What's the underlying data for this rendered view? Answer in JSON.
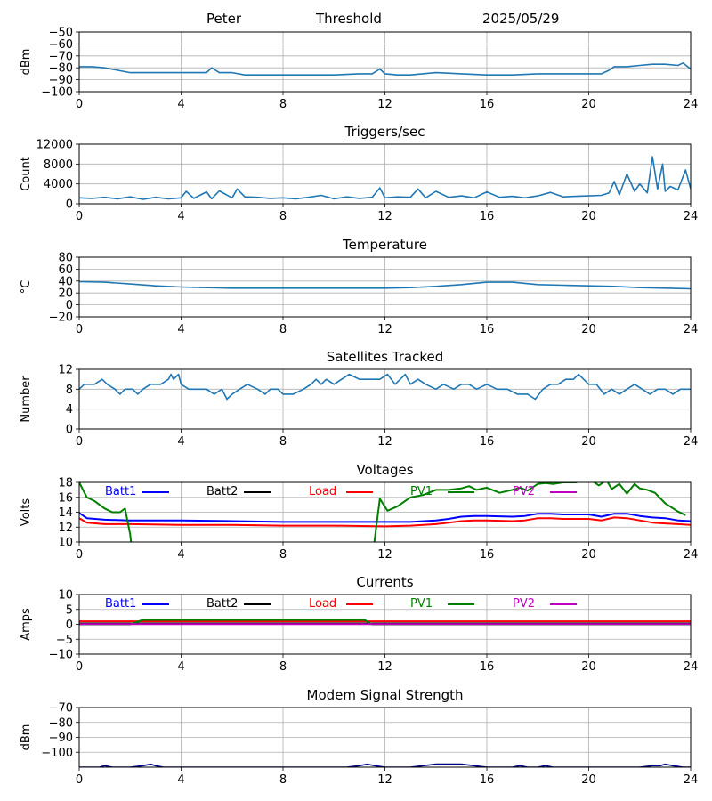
{
  "header": {
    "name": "Peter",
    "mode": "Threshold",
    "date": "2025/05/29"
  },
  "colors": {
    "series": "#1f77b4",
    "grid": "#b0b0b0",
    "batt1": "#0000ff",
    "batt2": "#000000",
    "load": "#ff0000",
    "pv1": "#008000",
    "pv2": "#bf00bf",
    "modem": "#00008b"
  },
  "chart_data": [
    {
      "type": "line",
      "title": "",
      "ylabel": "dBm",
      "xlim": [
        0,
        24
      ],
      "ylim": [
        -100,
        -50
      ],
      "grid": true,
      "xticks": [
        0,
        4,
        8,
        12,
        16,
        20,
        24
      ],
      "yticks": [
        -100,
        -90,
        -80,
        -70,
        -60,
        -50
      ],
      "ytick_labels": [
        "−100",
        "−90",
        "−80",
        "−70",
        "−60",
        "−50"
      ],
      "series": [
        {
          "name": "",
          "x": [
            0,
            0.5,
            1,
            1.5,
            2,
            3,
            4,
            4.5,
            5,
            5.2,
            5.5,
            6,
            6.5,
            7,
            8,
            9,
            10,
            11,
            11.5,
            11.8,
            12,
            12.5,
            13,
            14,
            15,
            16,
            17,
            18,
            19,
            20,
            20.5,
            20.8,
            21,
            21.5,
            22,
            22.5,
            23,
            23.5,
            23.7,
            24
          ],
          "y": [
            -79,
            -79,
            -80,
            -82,
            -84,
            -84,
            -84,
            -84,
            -84,
            -80,
            -84,
            -84,
            -86,
            -86,
            -86,
            -86,
            -86,
            -85,
            -85,
            -81,
            -85,
            -86,
            -86,
            -84,
            -85,
            -86,
            -86,
            -85,
            -85,
            -85,
            -85,
            -82,
            -79,
            -79,
            -78,
            -77,
            -77,
            -78,
            -76,
            -81
          ]
        }
      ]
    },
    {
      "type": "line",
      "title": "Triggers/sec",
      "ylabel": "Count",
      "xlim": [
        0,
        24
      ],
      "ylim": [
        0,
        12000
      ],
      "grid": true,
      "xticks": [
        0,
        4,
        8,
        12,
        16,
        20,
        24
      ],
      "yticks": [
        0,
        4000,
        8000,
        12000
      ],
      "ytick_labels": [
        "0",
        "4000",
        "8000",
        "12000"
      ],
      "series": [
        {
          "name": "",
          "x": [
            0,
            0.5,
            1,
            1.5,
            2,
            2.5,
            3,
            3.5,
            4,
            4.2,
            4.5,
            5,
            5.2,
            5.5,
            6,
            6.2,
            6.5,
            7,
            7.5,
            8,
            8.5,
            9,
            9.5,
            10,
            10.5,
            11,
            11.5,
            11.8,
            12,
            12.5,
            13,
            13.3,
            13.6,
            14,
            14.5,
            15,
            15.5,
            16,
            16.5,
            17,
            17.5,
            18,
            18.5,
            19,
            19.5,
            20,
            20.5,
            20.8,
            21,
            21.2,
            21.5,
            21.8,
            22,
            22.3,
            22.5,
            22.7,
            22.9,
            23,
            23.2,
            23.5,
            23.8,
            24
          ],
          "y": [
            1200,
            1100,
            1300,
            1000,
            1400,
            900,
            1300,
            1000,
            1200,
            2500,
            1100,
            2400,
            1000,
            2600,
            1200,
            3000,
            1400,
            1300,
            1100,
            1200,
            1000,
            1300,
            1700,
            1000,
            1400,
            1100,
            1300,
            3200,
            1200,
            1400,
            1300,
            3000,
            1200,
            2500,
            1300,
            1600,
            1200,
            2400,
            1300,
            1500,
            1200,
            1600,
            2300,
            1400,
            1500,
            1600,
            1700,
            2200,
            4500,
            1800,
            6000,
            2500,
            4000,
            2200,
            9500,
            3000,
            8000,
            2500,
            3500,
            2800,
            6800,
            3000
          ]
        }
      ]
    },
    {
      "type": "line",
      "title": "Temperature",
      "ylabel": "°C",
      "xlim": [
        0,
        24
      ],
      "ylim": [
        -20,
        80
      ],
      "grid": true,
      "xticks": [
        0,
        4,
        8,
        12,
        16,
        20,
        24
      ],
      "yticks": [
        -20,
        0,
        20,
        40,
        60,
        80
      ],
      "ytick_labels": [
        "−20",
        "0",
        "20",
        "40",
        "60",
        "80"
      ],
      "series": [
        {
          "name": "",
          "x": [
            0,
            1,
            2,
            3,
            4,
            5,
            6,
            8,
            10,
            11,
            12,
            13,
            14,
            15,
            16,
            17,
            18,
            19,
            20,
            21,
            22,
            23,
            24
          ],
          "y": [
            39,
            38,
            35,
            32,
            30,
            29,
            28,
            28,
            28,
            28,
            28,
            29,
            31,
            34,
            38,
            38,
            34,
            33,
            32,
            31,
            29,
            28,
            27
          ]
        }
      ]
    },
    {
      "type": "line",
      "title": "Satellites Tracked",
      "ylabel": "Number",
      "xlim": [
        0,
        24
      ],
      "ylim": [
        0,
        12
      ],
      "grid": true,
      "xticks": [
        0,
        4,
        8,
        12,
        16,
        20,
        24
      ],
      "yticks": [
        0,
        4,
        8,
        12
      ],
      "ytick_labels": [
        "0",
        "4",
        "8",
        "12"
      ],
      "series": [
        {
          "name": "",
          "x": [
            0,
            0.2,
            0.6,
            0.9,
            1.1,
            1.4,
            1.6,
            1.8,
            2.1,
            2.3,
            2.5,
            2.8,
            3.0,
            3.2,
            3.5,
            3.6,
            3.7,
            3.9,
            4.0,
            4.3,
            4.6,
            5.0,
            5.3,
            5.6,
            5.8,
            6.0,
            6.3,
            6.6,
            7.0,
            7.3,
            7.5,
            7.8,
            8.0,
            8.4,
            8.8,
            9.1,
            9.3,
            9.5,
            9.7,
            10.0,
            10.3,
            10.6,
            11.0,
            11.4,
            11.8,
            12.1,
            12.4,
            12.6,
            12.8,
            13.0,
            13.3,
            13.6,
            14.0,
            14.3,
            14.7,
            15.0,
            15.3,
            15.6,
            16.0,
            16.4,
            16.8,
            17.2,
            17.6,
            17.9,
            18.2,
            18.5,
            18.8,
            19.1,
            19.4,
            19.6,
            20.0,
            20.3,
            20.6,
            20.9,
            21.2,
            21.5,
            21.8,
            22.1,
            22.4,
            22.7,
            23.0,
            23.3,
            23.6,
            24.0
          ],
          "y": [
            8,
            9,
            9,
            10,
            9,
            8,
            7,
            8,
            8,
            7,
            8,
            9,
            9,
            9,
            10,
            11,
            10,
            11,
            9,
            8,
            8,
            8,
            7,
            8,
            6,
            7,
            8,
            9,
            8,
            7,
            8,
            8,
            7,
            7,
            8,
            9,
            10,
            9,
            10,
            9,
            10,
            11,
            10,
            10,
            10,
            11,
            9,
            10,
            11,
            9,
            10,
            9,
            8,
            9,
            8,
            9,
            9,
            8,
            9,
            8,
            8,
            7,
            7,
            6,
            8,
            9,
            9,
            10,
            10,
            11,
            9,
            9,
            7,
            8,
            7,
            8,
            9,
            8,
            7,
            8,
            8,
            7,
            8,
            8
          ]
        }
      ]
    },
    {
      "type": "line",
      "title": "Voltages",
      "ylabel": "Volts",
      "xlim": [
        0,
        24
      ],
      "ylim": [
        10,
        18
      ],
      "grid": true,
      "xticks": [
        0,
        4,
        8,
        12,
        16,
        20,
        24
      ],
      "yticks": [
        10,
        12,
        14,
        16,
        18
      ],
      "ytick_labels": [
        "10",
        "12",
        "14",
        "16",
        "18"
      ],
      "series": [
        {
          "name": "Batt1",
          "color_key": "batt1",
          "x": [
            0,
            0.3,
            1,
            2,
            4,
            6,
            8,
            10,
            12,
            13,
            14,
            14.5,
            15,
            15.5,
            16,
            17,
            17.5,
            18,
            18.5,
            19,
            20,
            20.5,
            21,
            21.5,
            22,
            22.5,
            23,
            23.5,
            24
          ],
          "y": [
            13.9,
            13.2,
            13.0,
            12.9,
            12.9,
            12.8,
            12.7,
            12.7,
            12.7,
            12.7,
            12.9,
            13.1,
            13.4,
            13.5,
            13.5,
            13.4,
            13.5,
            13.8,
            13.8,
            13.7,
            13.7,
            13.4,
            13.8,
            13.8,
            13.5,
            13.3,
            13.2,
            12.9,
            12.8
          ]
        },
        {
          "name": "Batt2",
          "color_key": "batt2",
          "x": [],
          "y": []
        },
        {
          "name": "Load",
          "color_key": "load",
          "x": [
            0,
            0.3,
            1,
            2,
            4,
            6,
            8,
            10,
            12,
            13,
            14,
            14.5,
            15,
            15.5,
            16,
            17,
            17.5,
            18,
            18.5,
            19,
            20,
            20.5,
            21,
            21.5,
            22,
            22.5,
            23,
            23.5,
            24
          ],
          "y": [
            13.2,
            12.6,
            12.4,
            12.4,
            12.3,
            12.3,
            12.2,
            12.2,
            12.1,
            12.2,
            12.4,
            12.6,
            12.8,
            12.9,
            12.9,
            12.8,
            12.9,
            13.2,
            13.2,
            13.1,
            13.1,
            12.9,
            13.3,
            13.2,
            12.9,
            12.6,
            12.5,
            12.4,
            12.3
          ]
        },
        {
          "name": "PV1",
          "color_key": "pv1",
          "x": [
            0,
            0.3,
            0.6,
            1.0,
            1.3,
            1.6,
            1.8,
            2.0,
            2.2,
            11.4,
            11.8,
            12.1,
            12.5,
            13.0,
            13.5,
            14.0,
            14.5,
            15.0,
            15.3,
            15.6,
            16.0,
            16.5,
            17.0,
            17.3,
            17.6,
            18.0,
            18.3,
            18.6,
            19.0,
            19.5,
            20.0,
            20.4,
            20.7,
            20.9,
            21.2,
            21.5,
            21.8,
            22.0,
            22.3,
            22.6,
            23.0,
            23.5,
            23.8
          ],
          "y": [
            18.0,
            16.0,
            15.5,
            14.5,
            14.0,
            14.0,
            14.5,
            11.0,
            5.0,
            5.0,
            15.8,
            14.2,
            14.8,
            16.0,
            16.3,
            17.0,
            17.0,
            17.2,
            17.5,
            17.0,
            17.3,
            16.6,
            17.0,
            17.3,
            16.9,
            17.8,
            17.9,
            17.8,
            18.0,
            18.0,
            18.5,
            17.6,
            18.3,
            17.1,
            17.8,
            16.5,
            17.8,
            17.2,
            17.0,
            16.6,
            15.2,
            14.1,
            13.6
          ]
        },
        {
          "name": "PV2",
          "color_key": "pv2",
          "x": [],
          "y": []
        }
      ]
    },
    {
      "type": "line",
      "title": "Currents",
      "ylabel": "Amps",
      "xlim": [
        0,
        24
      ],
      "ylim": [
        -10,
        10
      ],
      "grid": true,
      "xticks": [
        0,
        4,
        8,
        12,
        16,
        20,
        24
      ],
      "yticks": [
        -10,
        -5,
        0,
        5,
        10
      ],
      "ytick_labels": [
        "−10",
        "−5",
        "0",
        "5",
        "10"
      ],
      "series": [
        {
          "name": "Batt1",
          "color_key": "batt1",
          "x": [
            0,
            24
          ],
          "y": [
            0.2,
            0.2
          ]
        },
        {
          "name": "Batt2",
          "color_key": "batt2",
          "x": [
            0,
            24
          ],
          "y": [
            0.3,
            0.3
          ]
        },
        {
          "name": "Load",
          "color_key": "load",
          "x": [
            0,
            6,
            12,
            18,
            24
          ],
          "y": [
            1.0,
            1.0,
            1.0,
            1.0,
            1.0
          ]
        },
        {
          "name": "PV1",
          "color_key": "pv1",
          "x": [
            0,
            2.0,
            2.5,
            11.2,
            11.5,
            24
          ],
          "y": [
            0,
            0,
            1.5,
            1.5,
            0,
            0
          ]
        },
        {
          "name": "PV2",
          "color_key": "pv2",
          "x": [
            0,
            24
          ],
          "y": [
            0.1,
            0.1
          ]
        }
      ]
    },
    {
      "type": "line",
      "title": "Modem Signal Strength",
      "ylabel": "dBm",
      "xlim": [
        0,
        24
      ],
      "ylim": [
        -110,
        -70
      ],
      "grid": true,
      "xticks": [
        0,
        4,
        8,
        12,
        16,
        20,
        24
      ],
      "yticks": [
        -100,
        -90,
        -80,
        -70
      ],
      "ytick_labels": [
        "−100",
        "−90",
        "−80",
        "−70"
      ],
      "series": [
        {
          "name": "",
          "color_key": "modem",
          "x": [
            0,
            0.8,
            1,
            1.3,
            1.7,
            2,
            2.5,
            2.8,
            3,
            3.3,
            3.7,
            4,
            4.5,
            5,
            6,
            7,
            8,
            9,
            10,
            10.5,
            11,
            11.3,
            11.6,
            12,
            13,
            13.5,
            14,
            14.5,
            15,
            15.5,
            16,
            17,
            17.3,
            17.6,
            18,
            18.3,
            18.6,
            19,
            20,
            21,
            21.5,
            22,
            22.5,
            22.8,
            23,
            23.3,
            23.7,
            24
          ],
          "y": [
            -110,
            -110,
            -109,
            -110,
            -110,
            -110,
            -109,
            -108,
            -109,
            -110,
            -110,
            -110,
            -110,
            -110,
            -110,
            -110,
            -110,
            -110,
            -110,
            -110,
            -109,
            -108,
            -109,
            -110,
            -110,
            -109,
            -108,
            -108,
            -108,
            -109,
            -110,
            -110,
            -109,
            -110,
            -110,
            -109,
            -110,
            -110,
            -110,
            -110,
            -110,
            -110,
            -109,
            -109,
            -108,
            -109,
            -110,
            -110
          ]
        }
      ]
    }
  ]
}
